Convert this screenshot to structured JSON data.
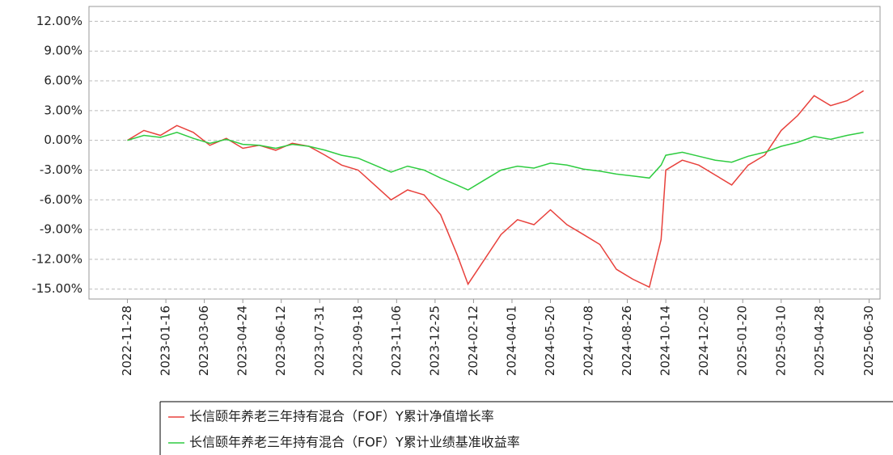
{
  "chart_data": {
    "type": "line",
    "x": [
      "2022-11-28",
      "2022-12-19",
      "2023-01-09",
      "2023-01-30",
      "2023-02-20",
      "2023-03-13",
      "2023-04-03",
      "2023-04-24",
      "2023-05-15",
      "2023-06-05",
      "2023-06-26",
      "2023-07-17",
      "2023-08-07",
      "2023-08-28",
      "2023-09-18",
      "2023-10-09",
      "2023-10-30",
      "2023-11-20",
      "2023-12-11",
      "2024-01-01",
      "2024-01-22",
      "2024-02-05",
      "2024-02-26",
      "2024-03-18",
      "2024-04-08",
      "2024-04-29",
      "2024-05-20",
      "2024-06-10",
      "2024-07-01",
      "2024-07-22",
      "2024-08-12",
      "2024-09-02",
      "2024-09-23",
      "2024-10-08",
      "2024-10-14",
      "2024-11-04",
      "2024-11-25",
      "2024-12-16",
      "2025-01-06",
      "2025-01-27",
      "2025-02-17",
      "2025-03-10",
      "2025-03-31",
      "2025-04-21",
      "2025-05-12",
      "2025-06-02",
      "2025-06-23"
    ],
    "series": [
      {
        "name": "长信颐年养老三年持有混合（FOF）Y累计净值增长率",
        "color": "#e8413c",
        "values": [
          0,
          1.0,
          0.5,
          1.5,
          0.8,
          -0.5,
          0.2,
          -0.8,
          -0.5,
          -1.0,
          -0.3,
          -0.6,
          -1.5,
          -2.5,
          -3.0,
          -4.5,
          -6.0,
          -5.0,
          -5.5,
          -7.5,
          -11.5,
          -14.5,
          -12.0,
          -9.5,
          -8.0,
          -8.5,
          -7.0,
          -8.5,
          -9.5,
          -10.5,
          -13.0,
          -14.0,
          -14.8,
          -10.0,
          -3.0,
          -2.0,
          -2.5,
          -3.5,
          -4.5,
          -2.5,
          -1.5,
          1.0,
          2.5,
          4.5,
          3.5,
          4.0,
          5.0
        ]
      },
      {
        "name": "长信颐年养老三年持有混合（FOF）Y累计业绩基准收益率",
        "color": "#2ecc40",
        "values": [
          0,
          0.5,
          0.3,
          0.8,
          0.2,
          -0.3,
          0.1,
          -0.4,
          -0.5,
          -0.8,
          -0.4,
          -0.6,
          -1.0,
          -1.5,
          -1.8,
          -2.5,
          -3.2,
          -2.6,
          -3.0,
          -3.8,
          -4.5,
          -5.0,
          -4.0,
          -3.0,
          -2.6,
          -2.8,
          -2.3,
          -2.5,
          -2.9,
          -3.1,
          -3.4,
          -3.6,
          -3.8,
          -2.5,
          -1.5,
          -1.2,
          -1.6,
          -2.0,
          -2.2,
          -1.6,
          -1.2,
          -0.6,
          -0.2,
          0.4,
          0.1,
          0.5,
          0.8
        ]
      }
    ],
    "xlim": [
      "2022-10-10",
      "2025-07-14"
    ],
    "xticks": [
      "2022-11-28",
      "2023-01-16",
      "2023-03-06",
      "2023-04-24",
      "2023-06-12",
      "2023-07-31",
      "2023-09-18",
      "2023-11-06",
      "2023-12-25",
      "2024-02-12",
      "2024-04-01",
      "2024-05-20",
      "2024-07-08",
      "2024-08-26",
      "2024-10-14",
      "2024-12-02",
      "2025-01-20",
      "2025-03-10",
      "2025-04-28",
      "2025-06-30"
    ],
    "ylim": [
      -16,
      13.5
    ],
    "yticks": [
      {
        "value": 12,
        "label": "12.00%"
      },
      {
        "value": 9,
        "label": "9.00%"
      },
      {
        "value": 6,
        "label": "6.00%"
      },
      {
        "value": 3,
        "label": "3.00%"
      },
      {
        "value": 0,
        "label": "0.00%"
      },
      {
        "value": -3,
        "label": "-3.00%"
      },
      {
        "value": -6,
        "label": "-6.00%"
      },
      {
        "value": -9,
        "label": "-9.00%"
      },
      {
        "value": -12,
        "label": "-12.00%"
      },
      {
        "value": -15,
        "label": "-15.00%"
      }
    ],
    "grid": true,
    "legend": "bottom"
  }
}
